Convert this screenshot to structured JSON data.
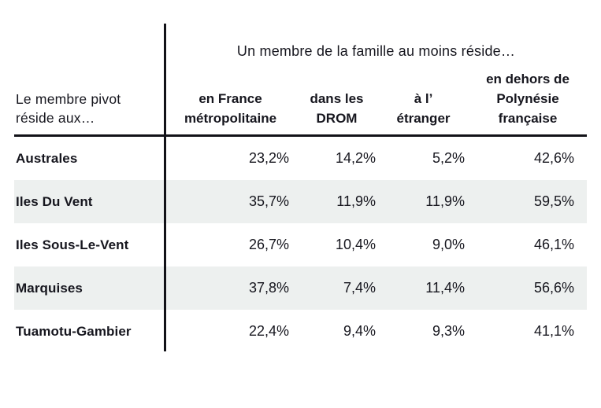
{
  "page": {
    "background_color": "#ffffff",
    "text_color": "#16161e",
    "rule_color": "#121218",
    "stripe_color": "#edf0ef"
  },
  "table": {
    "row_header_label": "Le membre pivot\nréside aux…",
    "column_group_header": "Un membre de la famille au moins réside…",
    "columns": [
      "en France\nmétropolitaine",
      "dans les\nDROM",
      "à l’\nétranger",
      "en dehors de\nPolynésie\nfrançaise"
    ],
    "rows": [
      {
        "label": "Australes",
        "values": [
          "23,2%",
          "14,2%",
          "5,2%",
          "42,6%"
        ]
      },
      {
        "label": "Iles Du Vent",
        "values": [
          "35,7%",
          "11,9%",
          "11,9%",
          "59,5%"
        ]
      },
      {
        "label": "Iles Sous-Le-Vent",
        "values": [
          "26,7%",
          "10,4%",
          "9,0%",
          "46,1%"
        ]
      },
      {
        "label": "Marquises",
        "values": [
          "37,8%",
          "7,4%",
          "11,4%",
          "56,6%"
        ]
      },
      {
        "label": "Tuamotu-Gambier",
        "values": [
          "22,4%",
          "9,4%",
          "9,3%",
          "41,1%"
        ]
      }
    ]
  },
  "chart_data": {
    "type": "table",
    "row_header_label": "Le membre pivot réside aux…",
    "column_group_label": "Un membre de la famille au moins réside…",
    "columns": [
      "en France métropolitaine",
      "dans les DROM",
      "à l’étranger",
      "en dehors de Polynésie française"
    ],
    "row_labels": [
      "Australes",
      "Iles Du Vent",
      "Iles Sous-Le-Vent",
      "Marquises",
      "Tuamotu-Gambier"
    ],
    "values_percent": [
      [
        23.2,
        14.2,
        5.2,
        42.6
      ],
      [
        35.7,
        11.9,
        11.9,
        59.5
      ],
      [
        26.7,
        10.4,
        9.0,
        46.1
      ],
      [
        37.8,
        7.4,
        11.4,
        56.6
      ],
      [
        22.4,
        9.4,
        9.3,
        41.1
      ]
    ],
    "unit": "%",
    "decimal_separator": ","
  }
}
